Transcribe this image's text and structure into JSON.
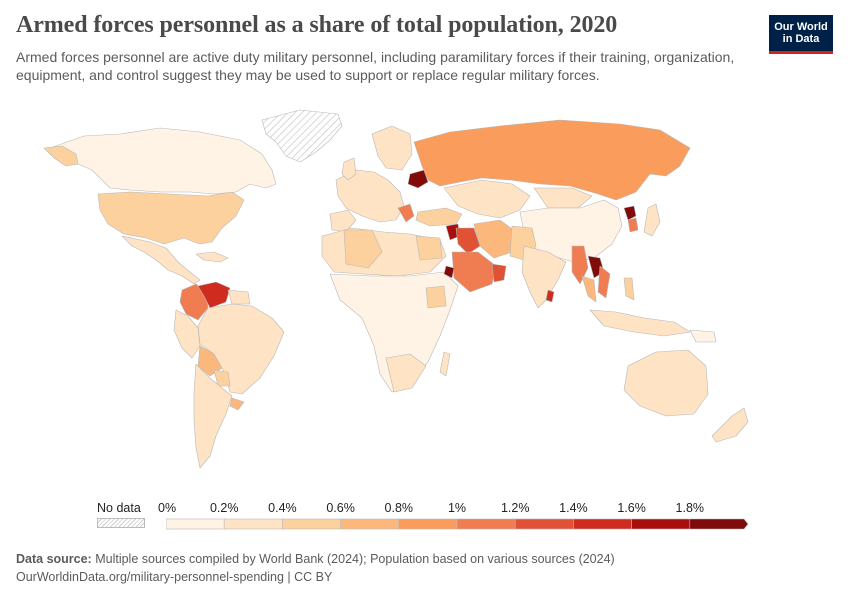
{
  "header": {
    "title": "Armed forces personnel as a share of total population, 2020",
    "subtitle": "Armed forces personnel are active duty military personnel, including paramilitary forces if their training, organization, equipment, and control suggest they may be used to support or replace regular military forces."
  },
  "logo": {
    "line1": "Our World",
    "line2": "in Data"
  },
  "legend": {
    "no_data_label": "No data",
    "ticks": [
      "0%",
      "0.2%",
      "0.4%",
      "0.6%",
      "0.8%",
      "1%",
      "1.2%",
      "1.4%",
      "1.6%",
      "1.8%"
    ],
    "colors": [
      "#fff3e6",
      "#fee3c4",
      "#fdd19d",
      "#fcb87c",
      "#fa9c5c",
      "#f07c51",
      "#e05136",
      "#cf2b1e",
      "#aa0e0c",
      "#7f0b0b"
    ]
  },
  "map_data": {
    "variable": "armed_forces_share_pct",
    "regions": [
      {
        "name": "North America / USA",
        "bin": 2
      },
      {
        "name": "Canada",
        "bin": 0
      },
      {
        "name": "Mexico",
        "bin": 1
      },
      {
        "name": "Colombia",
        "bin": 5
      },
      {
        "name": "Venezuela",
        "bin": 7
      },
      {
        "name": "Brazil",
        "bin": 1
      },
      {
        "name": "Argentina",
        "bin": 1
      },
      {
        "name": "Bolivia",
        "bin": 3
      },
      {
        "name": "Russia",
        "bin": 4
      },
      {
        "name": "Belarus",
        "bin": 9
      },
      {
        "name": "China",
        "bin": 0
      },
      {
        "name": "India",
        "bin": 1
      },
      {
        "name": "Myanmar",
        "bin": 5
      },
      {
        "name": "Laos",
        "bin": 9
      },
      {
        "name": "Vietnam",
        "bin": 5
      },
      {
        "name": "Syria",
        "bin": 8
      },
      {
        "name": "Iraq",
        "bin": 6
      },
      {
        "name": "Saudi Arabia",
        "bin": 5
      },
      {
        "name": "Iran",
        "bin": 3
      },
      {
        "name": "Sri Lanka",
        "bin": 7
      },
      {
        "name": "Eritrea",
        "bin": 9
      },
      {
        "name": "North Korea",
        "bin": 9
      },
      {
        "name": "South Korea",
        "bin": 5
      },
      {
        "name": "Australia",
        "bin": 1
      },
      {
        "name": "Algeria",
        "bin": 2
      },
      {
        "name": "Greenland",
        "bin": "no-data"
      }
    ]
  },
  "footer": {
    "source_label": "Data source:",
    "source_text": " Multiple sources compiled by World Bank (2024); Population based on various sources (2024)",
    "url_line": "OurWorldinData.org/military-personnel-spending | CC BY"
  }
}
